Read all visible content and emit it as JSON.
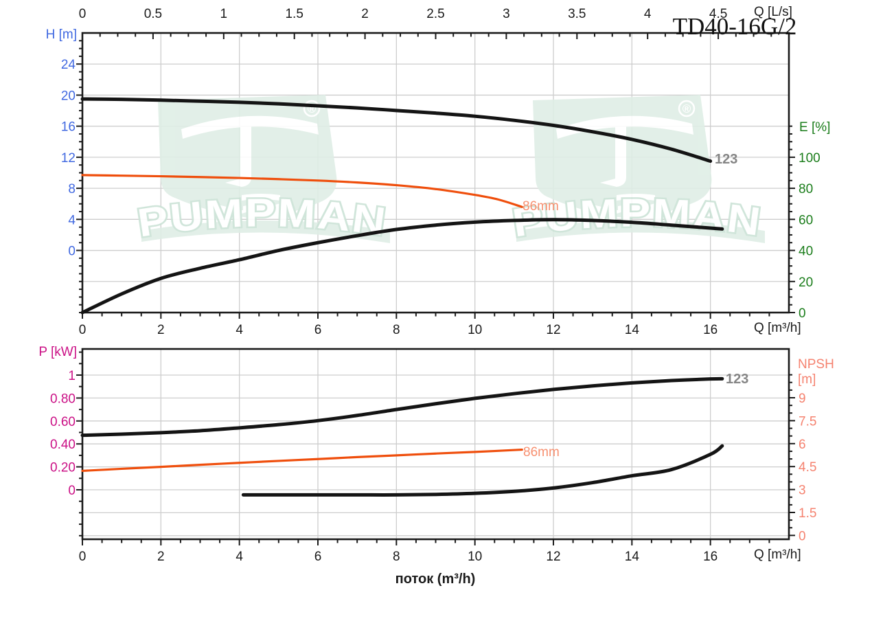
{
  "title": "TD40-16G/2",
  "watermark": {
    "text": "PUMPMAN",
    "registered": "®",
    "shield_color": "#DFEEE6",
    "letter_outline": "#CBE3D6"
  },
  "labels": {
    "top_q_ls": "Q [L/s]",
    "h_axis": "H [m]",
    "e_axis": "E [%]",
    "q_m3h_top": "Q [m³/h]",
    "p_axis": "P [kW]",
    "npsh_line1": "NPSH",
    "npsh_line2": "[m]",
    "q_m3h_bottom": "Q [m³/h]",
    "flow_label": "поток (m³/h)"
  },
  "annotations": {
    "impeller_large": "123",
    "impeller_small": "86mm"
  },
  "colors": {
    "curve_black": "#141414",
    "curve_orange": "#EF4E0C",
    "grid": "#CDCDCD",
    "axis": "#1a1a1a",
    "h_axis": "#4169E1",
    "e_axis": "#1B7D1B",
    "p_axis": "#CB1186",
    "npsh_axis": "#F5826F"
  },
  "chart_data": [
    {
      "type": "line",
      "name": "head-efficiency-chart",
      "x_axis_bottom": {
        "label": "Q [m³/h]",
        "min": 0,
        "max": 17.5,
        "minor_step": 0.5,
        "ticks": [
          {
            "v": 0,
            "t": "0"
          },
          {
            "v": 2,
            "t": "2"
          },
          {
            "v": 4,
            "t": "4"
          },
          {
            "v": 6,
            "t": "6"
          },
          {
            "v": 8,
            "t": "8"
          },
          {
            "v": 10,
            "t": "10"
          },
          {
            "v": 12,
            "t": "12"
          },
          {
            "v": 14,
            "t": "14"
          },
          {
            "v": 16,
            "t": "16"
          }
        ]
      },
      "x_axis_top": {
        "label": "Q [L/s]",
        "min": 0,
        "max": 4.875,
        "minor_step": 0.125,
        "ticks": [
          {
            "v": 0,
            "t": "0"
          },
          {
            "v": 0.5,
            "t": "0.5"
          },
          {
            "v": 1,
            "t": "1"
          },
          {
            "v": 1.5,
            "t": "1.5"
          },
          {
            "v": 2,
            "t": "2"
          },
          {
            "v": 2.5,
            "t": "2.5"
          },
          {
            "v": 3,
            "t": "3"
          },
          {
            "v": 3.5,
            "t": "3.5"
          },
          {
            "v": 4,
            "t": "4"
          },
          {
            "v": 4.5,
            "t": "4.5"
          }
        ]
      },
      "y_axis_left": {
        "label": "H [m]",
        "min": -8,
        "max": 27,
        "minor_step": 1,
        "color": "#4169E1",
        "ticks": [
          {
            "v": 24,
            "t": "24"
          },
          {
            "v": 20,
            "t": "20"
          },
          {
            "v": 16,
            "t": "16"
          },
          {
            "v": 12,
            "t": "12"
          },
          {
            "v": 8,
            "t": "8"
          },
          {
            "v": 4,
            "t": "4"
          },
          {
            "v": 0,
            "t": "0"
          }
        ]
      },
      "y_axis_right": {
        "label": "E [%]",
        "min": 0,
        "max": 120,
        "minor_step": 5,
        "color": "#1B7D1B",
        "ticks": [
          {
            "v": 100,
            "t": "100"
          },
          {
            "v": 80,
            "t": "80"
          },
          {
            "v": 60,
            "t": "60"
          },
          {
            "v": 40,
            "t": "40"
          },
          {
            "v": 20,
            "t": "20"
          },
          {
            "v": 0,
            "t": "0"
          }
        ]
      },
      "grid_x": [
        2,
        4,
        6,
        8,
        10,
        12,
        14,
        16
      ],
      "grid_y_left_values": [
        24,
        20,
        16,
        12,
        8,
        4,
        0,
        -4
      ],
      "series": [
        {
          "name": "head-123",
          "axis": "H",
          "color": "#141414",
          "width": 5,
          "points": [
            [
              0,
              19.5
            ],
            [
              1,
              19.45
            ],
            [
              2,
              19.35
            ],
            [
              3,
              19.22
            ],
            [
              4,
              19.08
            ],
            [
              5,
              18.88
            ],
            [
              6,
              18.62
            ],
            [
              7,
              18.35
            ],
            [
              8,
              18.02
            ],
            [
              9,
              17.68
            ],
            [
              10,
              17.28
            ],
            [
              11,
              16.75
            ],
            [
              12,
              16.1
            ],
            [
              13,
              15.28
            ],
            [
              14,
              14.3
            ],
            [
              15,
              13.05
            ],
            [
              16,
              11.5
            ]
          ]
        },
        {
          "name": "head-86mm",
          "axis": "H",
          "color": "#EF4E0C",
          "width": 3.2,
          "points": [
            [
              0,
              9.7
            ],
            [
              1,
              9.63
            ],
            [
              2,
              9.55
            ],
            [
              3,
              9.45
            ],
            [
              4,
              9.33
            ],
            [
              5,
              9.18
            ],
            [
              6,
              9.0
            ],
            [
              7,
              8.75
            ],
            [
              8,
              8.4
            ],
            [
              9,
              7.9
            ],
            [
              10,
              7.15
            ],
            [
              10.6,
              6.55
            ],
            [
              11.2,
              5.6
            ]
          ]
        },
        {
          "name": "efficiency-123",
          "axis": "E",
          "color": "#141414",
          "width": 5,
          "points": [
            [
              0,
              0
            ],
            [
              1,
              12
            ],
            [
              2,
              22
            ],
            [
              3,
              28.5
            ],
            [
              4,
              34
            ],
            [
              5,
              40
            ],
            [
              6,
              45
            ],
            [
              7,
              49.5
            ],
            [
              8,
              53.5
            ],
            [
              9,
              56.3
            ],
            [
              10,
              58.2
            ],
            [
              11,
              59.3
            ],
            [
              12,
              59.8
            ],
            [
              13,
              59.3
            ],
            [
              14,
              58.1
            ],
            [
              15,
              56.3
            ],
            [
              16,
              54.4
            ],
            [
              16.3,
              53.8
            ]
          ]
        }
      ]
    },
    {
      "type": "line",
      "name": "power-npsh-chart",
      "x_axis_bottom": {
        "label": "Q [m³/h]",
        "min": 0,
        "max": 17.5,
        "minor_step": 0.5,
        "ticks": [
          {
            "v": 0,
            "t": "0"
          },
          {
            "v": 2,
            "t": "2"
          },
          {
            "v": 4,
            "t": "4"
          },
          {
            "v": 6,
            "t": "6"
          },
          {
            "v": 8,
            "t": "8"
          },
          {
            "v": 10,
            "t": "10"
          },
          {
            "v": 12,
            "t": "12"
          },
          {
            "v": 14,
            "t": "14"
          },
          {
            "v": 16,
            "t": "16"
          }
        ]
      },
      "y_axis_left": {
        "label": "P [kW]",
        "min": -0.4,
        "max": 1.2,
        "minor_step": 0.1,
        "color": "#CB1186",
        "ticks": [
          {
            "v": 1,
            "t": "1"
          },
          {
            "v": 0.8,
            "t": "0.80"
          },
          {
            "v": 0.6,
            "t": "0.60"
          },
          {
            "v": 0.4,
            "t": "0.40"
          },
          {
            "v": 0.2,
            "t": "0.20"
          },
          {
            "v": 0,
            "t": "0"
          }
        ]
      },
      "y_axis_right": {
        "label": "NPSH [m]",
        "min": 0,
        "max": 10.5,
        "minor_step": 0.5,
        "color": "#F5826F",
        "ticks": [
          {
            "v": 9,
            "t": "9"
          },
          {
            "v": 7.5,
            "t": "7.5"
          },
          {
            "v": 6,
            "t": "6"
          },
          {
            "v": 4.5,
            "t": "4.5"
          },
          {
            "v": 3,
            "t": "3"
          },
          {
            "v": 1.5,
            "t": "1.5"
          },
          {
            "v": 0,
            "t": "0"
          }
        ]
      },
      "grid_x": [
        2,
        4,
        6,
        8,
        10,
        12,
        14,
        16
      ],
      "grid_y_left_values": [
        1,
        0.8,
        0.6,
        0.4,
        0.2,
        0,
        -0.2,
        -0.4
      ],
      "series": [
        {
          "name": "power-123",
          "axis": "P",
          "color": "#141414",
          "width": 5,
          "points": [
            [
              0,
              0.475
            ],
            [
              1,
              0.485
            ],
            [
              2,
              0.498
            ],
            [
              3,
              0.515
            ],
            [
              4,
              0.54
            ],
            [
              5,
              0.568
            ],
            [
              6,
              0.603
            ],
            [
              7,
              0.648
            ],
            [
              8,
              0.7
            ],
            [
              9,
              0.75
            ],
            [
              10,
              0.797
            ],
            [
              11,
              0.838
            ],
            [
              12,
              0.875
            ],
            [
              13,
              0.906
            ],
            [
              14,
              0.932
            ],
            [
              15,
              0.952
            ],
            [
              16,
              0.966
            ],
            [
              16.3,
              0.968
            ]
          ]
        },
        {
          "name": "power-86mm",
          "axis": "P",
          "color": "#EF4E0C",
          "width": 3.2,
          "points": [
            [
              0,
              0.165
            ],
            [
              1,
              0.183
            ],
            [
              2,
              0.2
            ],
            [
              3,
              0.218
            ],
            [
              4,
              0.235
            ],
            [
              5,
              0.252
            ],
            [
              6,
              0.268
            ],
            [
              7,
              0.285
            ],
            [
              8,
              0.3
            ],
            [
              9,
              0.316
            ],
            [
              10,
              0.33
            ],
            [
              11.2,
              0.35
            ]
          ]
        },
        {
          "name": "npsh-123",
          "axis": "N",
          "color": "#141414",
          "width": 5,
          "points": [
            [
              4.1,
              2.65
            ],
            [
              5,
              2.65
            ],
            [
              6,
              2.65
            ],
            [
              7,
              2.65
            ],
            [
              8,
              2.65
            ],
            [
              9,
              2.68
            ],
            [
              10,
              2.75
            ],
            [
              11,
              2.88
            ],
            [
              12,
              3.1
            ],
            [
              13,
              3.45
            ],
            [
              14,
              3.9
            ],
            [
              15,
              4.3
            ],
            [
              16,
              5.3
            ],
            [
              16.3,
              5.85
            ]
          ]
        }
      ]
    }
  ]
}
